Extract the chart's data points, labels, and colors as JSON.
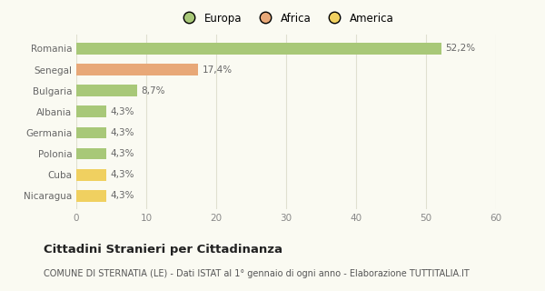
{
  "categories": [
    "Nicaragua",
    "Cuba",
    "Polonia",
    "Germania",
    "Albania",
    "Bulgaria",
    "Senegal",
    "Romania"
  ],
  "values": [
    4.3,
    4.3,
    4.3,
    4.3,
    4.3,
    8.7,
    17.4,
    52.2
  ],
  "labels": [
    "4,3%",
    "4,3%",
    "4,3%",
    "4,3%",
    "4,3%",
    "8,7%",
    "17,4%",
    "52,2%"
  ],
  "colors": [
    "#f0d060",
    "#f0d060",
    "#a8c878",
    "#a8c878",
    "#a8c878",
    "#a8c878",
    "#e8a878",
    "#a8c878"
  ],
  "legend_items": [
    {
      "label": "Europa",
      "color": "#a8c878"
    },
    {
      "label": "Africa",
      "color": "#e8a878"
    },
    {
      "label": "America",
      "color": "#f0d060"
    }
  ],
  "xlim": [
    0,
    60
  ],
  "xticks": [
    0,
    10,
    20,
    30,
    40,
    50,
    60
  ],
  "title": "Cittadini Stranieri per Cittadinanza",
  "subtitle": "COMUNE DI STERNATIA (LE) - Dati ISTAT al 1° gennaio di ogni anno - Elaborazione TUTTITALIA.IT",
  "background_color": "#fafaf2",
  "grid_color": "#e0e0d0",
  "bar_height": 0.55,
  "title_fontsize": 9.5,
  "subtitle_fontsize": 7,
  "label_fontsize": 7.5,
  "tick_fontsize": 7.5,
  "legend_fontsize": 8.5
}
